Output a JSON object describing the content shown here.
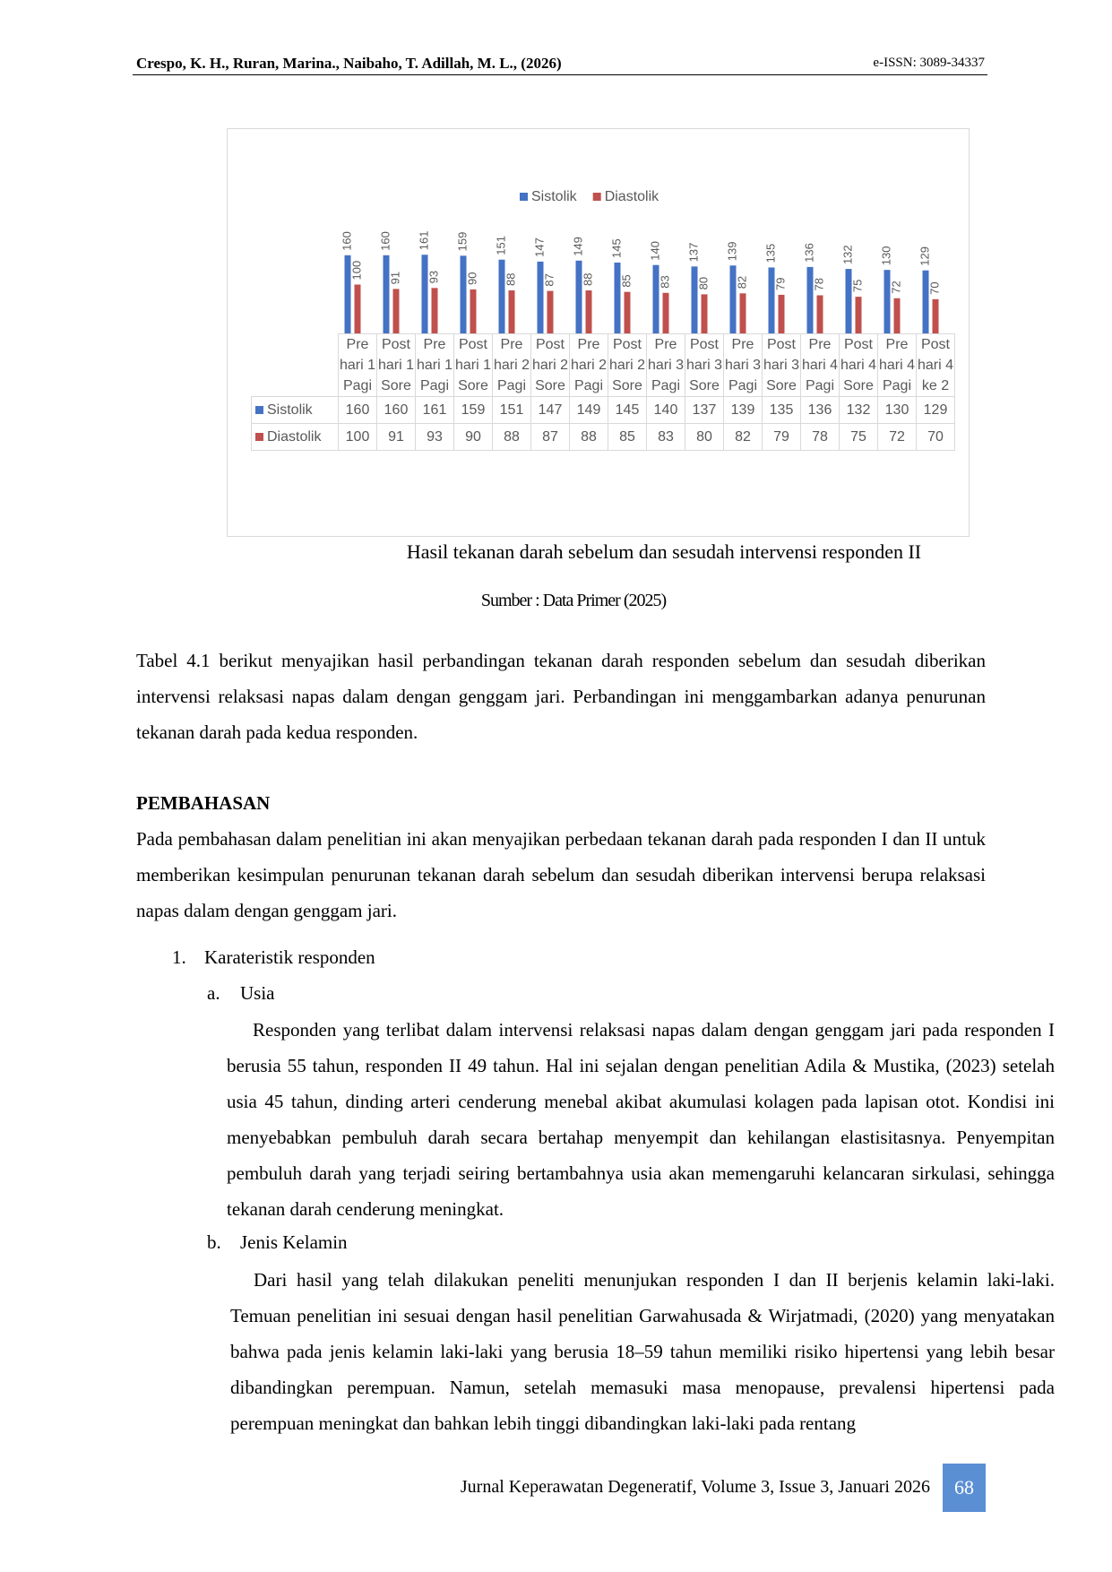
{
  "header": {
    "left": "Crespo, K. H., Ruran, Marina., Naibaho, T. Adillah, M. L., (2026)",
    "right": "e-ISSN: 3089-34337"
  },
  "chart_data": {
    "type": "bar",
    "categories": [
      "Pre hari 1 Pagi",
      "Post hari 1 Sore",
      "Pre hari 1 Pagi",
      "Post hari 1 Sore",
      "Pre hari 2 Pagi",
      "Post hari 2 Sore",
      "Pre hari 2 Pagi",
      "Post hari 2 Sore",
      "Pre hari 3 Pagi",
      "Post hari 3 Sore",
      "Pre hari 3 Pagi",
      "Post hari 3 Sore",
      "Pre hari 4 Pagi",
      "Post hari 4 Sore",
      "Pre hari 4 Pagi",
      "Post hari 4 ke 2"
    ],
    "series": [
      {
        "name": "Sistolik",
        "color": "#4472c4",
        "values": [
          160,
          160,
          161,
          159,
          151,
          147,
          149,
          145,
          140,
          137,
          139,
          135,
          136,
          132,
          130,
          129
        ]
      },
      {
        "name": "Diastolik",
        "color": "#c0504d",
        "values": [
          100,
          91,
          93,
          90,
          88,
          87,
          88,
          85,
          83,
          80,
          82,
          79,
          78,
          75,
          72,
          70
        ]
      }
    ],
    "legend": "top",
    "data_table": true
  },
  "caption": "Hasil tekanan darah sebelum dan sesudah intervensi responden II",
  "source": "Sumber : Data Primer (2025)",
  "paragraph1": "Tabel 4.1 berikut menyajikan hasil perbandingan tekanan darah responden sebelum dan sesudah diberikan intervensi relaksasi napas dalam dengan genggam jari. Perbandingan ini menggambarkan adanya penurunan tekanan darah pada kedua responden.",
  "section": {
    "title": "PEMBAHASAN",
    "text": "Pada pembahasan dalam penelitian ini akan menyajikan perbedaan tekanan darah pada responden I dan II untuk memberikan kesimpulan penurunan tekanan darah sebelum dan sesudah diberikan intervensi berupa relaksasi napas dalam dengan genggam jari."
  },
  "list": {
    "number": "1.",
    "title": "Karateristik responden",
    "items": [
      {
        "letter": "a.",
        "title": "Usia",
        "text": "Responden yang terlibat dalam intervensi relaksasi napas dalam dengan genggam jari pada responden I berusia 55 tahun, responden II 49 tahun. Hal ini sejalan dengan penelitian Adila & Mustika, (2023) setelah usia 45 tahun, dinding arteri cenderung menebal akibat akumulasi kolagen pada lapisan otot. Kondisi ini menyebabkan pembuluh darah secara bertahap menyempit dan kehilangan elastisitasnya. Penyempitan pembuluh darah yang terjadi seiring bertambahnya usia akan memengaruhi kelancaran sirkulasi, sehingga tekanan darah cenderung meningkat."
      },
      {
        "letter": "b.",
        "title": "Jenis Kelamin",
        "text": "Dari hasil yang telah dilakukan peneliti menunjukan responden I dan II berjenis kelamin laki-laki. Temuan penelitian ini sesuai dengan hasil penelitian Garwahusada & Wirjatmadi, (2020) yang menyatakan bahwa pada jenis kelamin laki-laki yang berusia 18–59 tahun memiliki risiko hipertensi yang lebih besar dibandingkan perempuan. Namun, setelah memasuki masa menopause, prevalensi hipertensi pada perempuan meningkat dan bahkan lebih tinggi dibandingkan laki-laki pada rentang"
      }
    ]
  },
  "footer": {
    "journal": "Jurnal Keperawatan Degeneratif, Volume 3, Issue 3, Januari 2026",
    "page": "68"
  }
}
